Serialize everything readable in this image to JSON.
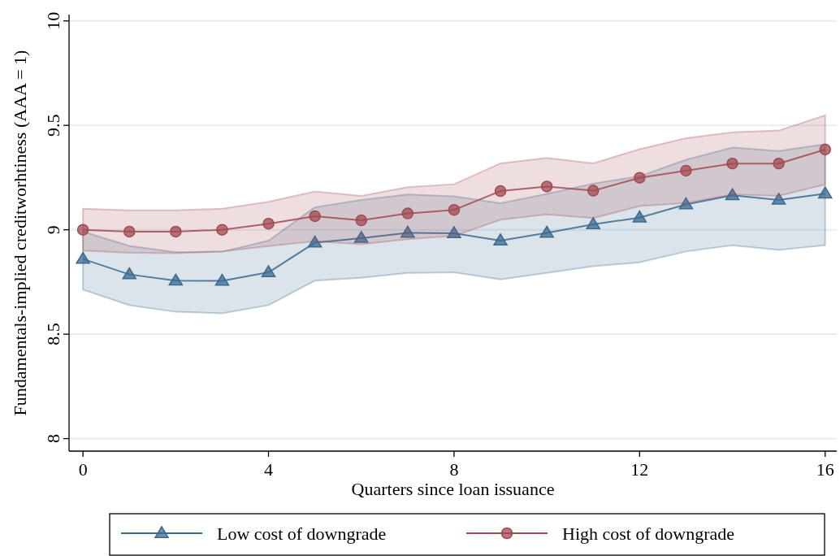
{
  "chart_data": {
    "type": "line",
    "xlabel": "Quarters since loan issuance",
    "ylabel": "Fundamentals-implied creditworhtiness (AAA = 1)",
    "x": [
      0,
      1,
      2,
      3,
      4,
      5,
      6,
      7,
      8,
      9,
      10,
      11,
      12,
      13,
      14,
      15,
      16
    ],
    "xlim": [
      -0.3,
      16.25
    ],
    "xticks": [
      0,
      4,
      8,
      12,
      16
    ],
    "ylim": [
      7.94,
      10.03
    ],
    "yticks": [
      8,
      8.5,
      9,
      9.5,
      10
    ],
    "grid": "y",
    "legend": "bottom",
    "series": [
      {
        "name": "Low cost of downgrade",
        "color": "#3b6a8f",
        "marker": "triangle",
        "values": [
          8.86,
          8.786,
          8.756,
          8.755,
          8.796,
          8.938,
          8.96,
          8.985,
          8.983,
          8.948,
          8.985,
          9.026,
          9.058,
          9.121,
          9.165,
          9.143,
          9.173
        ],
        "lower": [
          8.713,
          8.639,
          8.607,
          8.6,
          8.639,
          8.756,
          8.77,
          8.793,
          8.796,
          8.762,
          8.793,
          8.825,
          8.844,
          8.896,
          8.926,
          8.903,
          8.926
        ],
        "upper": [
          8.991,
          8.923,
          8.893,
          8.895,
          8.948,
          9.108,
          9.143,
          9.169,
          9.16,
          9.127,
          9.172,
          9.221,
          9.256,
          9.335,
          9.394,
          9.377,
          9.41
        ]
      },
      {
        "name": "High cost of downgrade",
        "color": "#a14a52",
        "marker": "circle",
        "values": [
          9.0,
          8.991,
          8.991,
          9.0,
          9.029,
          9.065,
          9.045,
          9.078,
          9.095,
          9.185,
          9.207,
          9.187,
          9.249,
          9.283,
          9.317,
          9.317,
          9.384
        ],
        "lower": [
          8.9,
          8.89,
          8.888,
          8.896,
          8.922,
          8.945,
          8.931,
          8.955,
          8.97,
          9.048,
          9.074,
          9.056,
          9.113,
          9.128,
          9.169,
          9.162,
          9.217
        ],
        "upper": [
          9.101,
          9.093,
          9.093,
          9.101,
          9.134,
          9.183,
          9.162,
          9.204,
          9.218,
          9.318,
          9.344,
          9.318,
          9.386,
          9.438,
          9.467,
          9.475,
          9.548
        ]
      }
    ]
  }
}
